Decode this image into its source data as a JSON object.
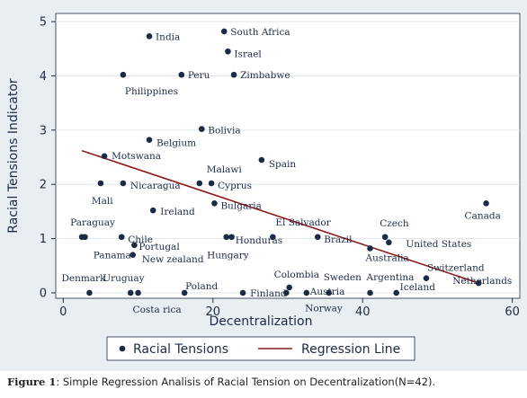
{
  "chart_data": {
    "type": "scatter",
    "xlabel": "Decentralization",
    "ylabel": "Racial Tensions Indicator",
    "xlim": [
      -1,
      61
    ],
    "ylim": [
      -0.1,
      5.15
    ],
    "xticks": [
      0,
      20,
      40,
      60
    ],
    "yticks": [
      0,
      1,
      2,
      3,
      4,
      5
    ],
    "grid": "horizontal",
    "legend_position": "bottom",
    "colors": {
      "points": "#1c2b45",
      "regression": "#8b1a1a",
      "plot_bg": "#ffffff",
      "figure_bg": "#e8eef1",
      "grid": "#dfe6ea"
    },
    "series": [
      {
        "name": "Racial Tensions",
        "kind": "scatter",
        "points": [
          {
            "x": 11.5,
            "y": 4.73,
            "label": "India"
          },
          {
            "x": 21.5,
            "y": 4.82,
            "label": "South Africa"
          },
          {
            "x": 22.0,
            "y": 4.45,
            "label": "Israel"
          },
          {
            "x": 8.0,
            "y": 4.02,
            "label": "Philippines"
          },
          {
            "x": 15.8,
            "y": 4.02,
            "label": "Peru"
          },
          {
            "x": 22.8,
            "y": 4.02,
            "label": "Zimbabwe"
          },
          {
            "x": 18.5,
            "y": 3.02,
            "label": "Bolivia"
          },
          {
            "x": 11.5,
            "y": 2.82,
            "label": "Belgium"
          },
          {
            "x": 5.5,
            "y": 2.52,
            "label": "Motswana"
          },
          {
            "x": 26.5,
            "y": 2.45,
            "label": "Spain"
          },
          {
            "x": 18.2,
            "y": 2.02,
            "label": "Malawi"
          },
          {
            "x": 19.8,
            "y": 2.02,
            "label": "Cyprus"
          },
          {
            "x": 8.0,
            "y": 2.02,
            "label": "Nicaragua"
          },
          {
            "x": 5.0,
            "y": 2.02,
            "label": "Mali"
          },
          {
            "x": 20.2,
            "y": 1.65,
            "label": "Bulgaria"
          },
          {
            "x": 12.0,
            "y": 1.52,
            "label": "Ireland"
          },
          {
            "x": 56.5,
            "y": 1.65,
            "label": "Canada"
          },
          {
            "x": 2.5,
            "y": 1.03,
            "label": "Paraguay"
          },
          {
            "x": 2.9,
            "y": 1.03,
            "label": ""
          },
          {
            "x": 7.8,
            "y": 1.03,
            "label": "Chile"
          },
          {
            "x": 9.5,
            "y": 0.88,
            "label": "Portugal"
          },
          {
            "x": 9.3,
            "y": 0.7,
            "label": "Panama"
          },
          {
            "x": 21.8,
            "y": 1.03,
            "label": "Honduras"
          },
          {
            "x": 22.5,
            "y": 1.03,
            "label": ""
          },
          {
            "x": 28.0,
            "y": 1.03,
            "label": "El Salvador"
          },
          {
            "x": 34.0,
            "y": 1.03,
            "label": "Brazil"
          },
          {
            "x": 43.0,
            "y": 1.03,
            "label": "Czech"
          },
          {
            "x": 43.5,
            "y": 0.93,
            "label": "United States"
          },
          {
            "x": 41.0,
            "y": 0.82,
            "label": "Australia"
          },
          {
            "x": 48.5,
            "y": 0.27,
            "label": "Switzerland"
          },
          {
            "x": 55.5,
            "y": 0.18,
            "label": "Netherlands"
          },
          {
            "x": 3.5,
            "y": 0.0,
            "label": "Denmark"
          },
          {
            "x": 9.0,
            "y": 0.0,
            "label": "Uruguay"
          },
          {
            "x": 10.0,
            "y": 0.0,
            "label": "Costa rica"
          },
          {
            "x": 16.2,
            "y": 0.0,
            "label": "Poland"
          },
          {
            "x": 24.0,
            "y": 0.0,
            "label": "Finland"
          },
          {
            "x": 30.2,
            "y": 0.1,
            "label": "Colombia"
          },
          {
            "x": 29.8,
            "y": 0.0,
            "label": ""
          },
          {
            "x": 32.5,
            "y": 0.0,
            "label": "Austria"
          },
          {
            "x": 35.5,
            "y": 0.0,
            "label": "Sweden"
          },
          {
            "x": 41.0,
            "y": 0.0,
            "label": "Argentina"
          },
          {
            "x": 44.5,
            "y": 0.0,
            "label": "Iceland"
          }
        ]
      },
      {
        "name": "Regression Line",
        "kind": "line",
        "points": [
          {
            "x": 2.5,
            "y": 2.62
          },
          {
            "x": 55.5,
            "y": 0.18
          }
        ]
      }
    ],
    "extra_labels": [
      {
        "text": "Hungary",
        "x": 19.2,
        "y": 0.7
      },
      {
        "text": "New zealand",
        "x": 10.5,
        "y": 0.63
      },
      {
        "text": "Norway",
        "x": 32.3,
        "y": -0.27
      }
    ]
  },
  "caption": {
    "label": "Figure 1",
    "text": ": Simple Regression Analisis of Racial Tension on Decentralization(N=42)."
  }
}
